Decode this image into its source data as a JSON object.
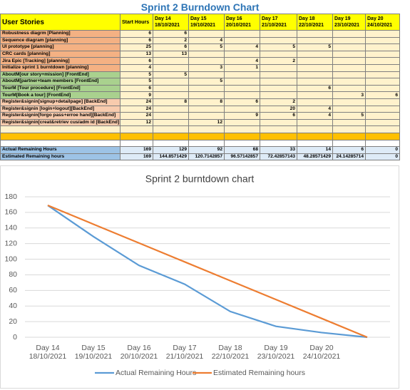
{
  "table": {
    "title": "Sprint 2 Burndown Chart",
    "header": {
      "stories": "User Stories",
      "start": "Start Hours",
      "days": [
        {
          "day": "Day 14",
          "date": "18/10/2021"
        },
        {
          "day": "Day 15",
          "date": "19/10/2021"
        },
        {
          "day": "Day 16",
          "date": "20/10/2021"
        },
        {
          "day": "Day 17",
          "date": "21/10/2021"
        },
        {
          "day": "Day 18",
          "date": "22/10/2021"
        },
        {
          "day": "Day 19",
          "date": "23/10/2021"
        },
        {
          "day": "Day 20",
          "date": "24/10/2021"
        }
      ]
    },
    "rows": [
      [
        "Robustness diagrm  [Planning]",
        6,
        6,
        null,
        null,
        null,
        null,
        null,
        null
      ],
      [
        "Sequence diagram  [planning]",
        6,
        2,
        4,
        null,
        null,
        null,
        null,
        null
      ],
      [
        "UI prototype  [planning]",
        25,
        6,
        5,
        4,
        5,
        5,
        null,
        null
      ],
      [
        "CRC cards  [planning]",
        13,
        13,
        null,
        null,
        null,
        null,
        null,
        null
      ],
      [
        "Jira Epic [Tracking]  [planning]",
        6,
        null,
        null,
        4,
        2,
        null,
        null,
        null
      ],
      [
        "Initialize sprint 1 burntdown [planning]",
        4,
        null,
        3,
        1,
        null,
        null,
        null,
        null
      ],
      [
        "AboutM[our story+mission]  [FrontEnd]",
        5,
        5,
        null,
        null,
        null,
        null,
        null,
        null
      ],
      [
        "AboutM[partner+team members  [FrontEnd]",
        5,
        null,
        5,
        null,
        null,
        null,
        null,
        null
      ],
      [
        "TourM [Tour procedure]  [FrontEnd]",
        6,
        null,
        null,
        null,
        null,
        6,
        null,
        null
      ],
      [
        "TourM[Book a tour]  [FrontEnd]",
        9,
        null,
        null,
        null,
        null,
        null,
        3,
        6
      ],
      [
        "Register&signin[signup+detailpage]  [BackEnd]",
        24,
        8,
        8,
        6,
        2,
        null,
        null,
        null
      ],
      [
        "Register&signin  [login+logout][BackEnd]",
        24,
        null,
        null,
        null,
        20,
        4,
        null,
        null
      ],
      [
        "Register&signin[forgo pass+erroe hand][BackEnd]",
        24,
        null,
        null,
        9,
        6,
        4,
        5,
        null
      ],
      [
        "Register&signin[creat&retriev cus/adm id [BackEnd]",
        12,
        null,
        12,
        null,
        null,
        null,
        null,
        null
      ]
    ],
    "totals": [
      [
        "Actual Remaining Hours",
        169,
        129,
        92,
        68,
        33,
        14,
        6,
        0
      ],
      [
        "Estimated Remaining hours",
        169,
        144.8571429,
        120.7142857,
        96.57142857,
        72.42857143,
        48.28571429,
        24.14285714,
        0
      ]
    ]
  },
  "chart_data": {
    "type": "line",
    "title": "Sprint 2 burntdown chart",
    "categories": [
      [
        "Day 14",
        "18/10/2021"
      ],
      [
        "Day 15",
        "19/10/2021"
      ],
      [
        "Day 16",
        "20/10/2021"
      ],
      [
        "Day 17",
        "21/10/2021"
      ],
      [
        "Day 18",
        "22/10/2021"
      ],
      [
        "Day 19",
        "23/10/2021"
      ],
      [
        "Day 20",
        "24/10/2021"
      ],
      null
    ],
    "series": [
      {
        "name": "Actual Remaining Hours",
        "color": "#5b9bd5",
        "values": [
          169,
          129,
          92,
          68,
          33,
          14,
          6,
          0
        ]
      },
      {
        "name": "Estimated Remaining hours",
        "color": "#ed7d31",
        "values": [
          169,
          144.8571429,
          120.7142857,
          96.57142857,
          72.42857143,
          48.28571429,
          24.14285714,
          0
        ]
      }
    ],
    "ylim": [
      0,
      180
    ],
    "yticks": [
      0,
      20,
      40,
      60,
      80,
      100,
      120,
      140,
      160,
      180
    ],
    "grid": true,
    "legend": "bottom"
  }
}
